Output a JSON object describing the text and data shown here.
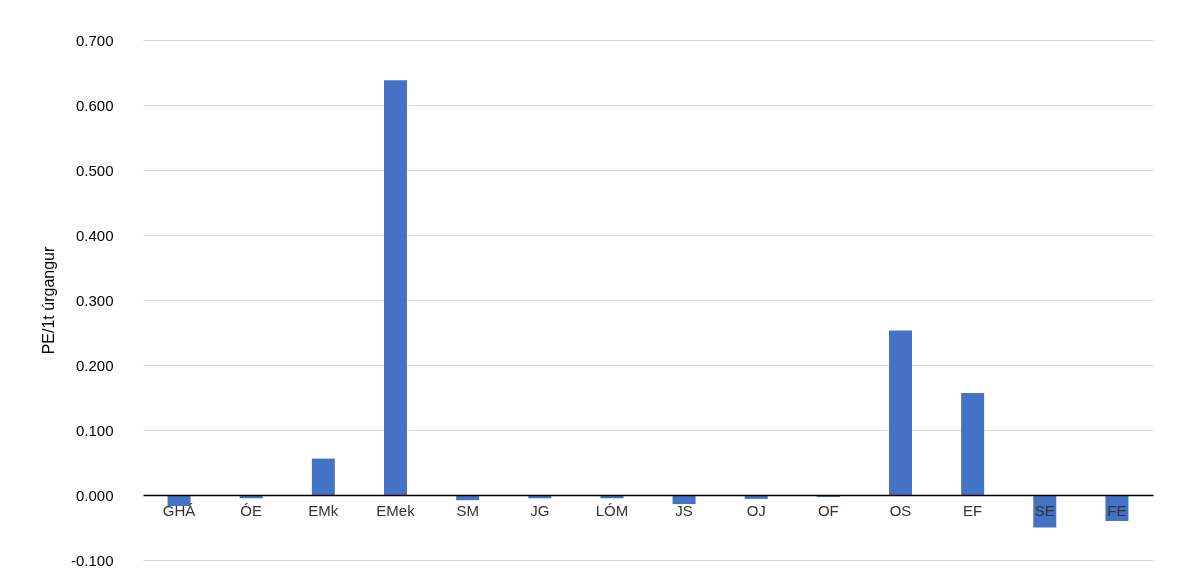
{
  "chart_data": {
    "type": "bar",
    "ylabel": "PE/1t úrgangur",
    "categories": [
      "GHÁ",
      "ÓE",
      "EMk",
      "EMek",
      "SM",
      "JG",
      "LÓM",
      "JS",
      "OJ",
      "OF",
      "OS",
      "EF",
      "SE",
      "FE"
    ],
    "values": [
      -0.017,
      -0.005,
      0.056,
      0.638,
      -0.008,
      -0.005,
      -0.005,
      -0.014,
      -0.006,
      -0.003,
      0.253,
      0.157,
      -0.05,
      -0.04
    ],
    "color": "#4472c4",
    "ylim": [
      -0.1,
      0.7
    ],
    "yticks": [
      {
        "value": -0.1,
        "label": "-0.100"
      },
      {
        "value": 0,
        "label": "0.000"
      },
      {
        "value": 0.1,
        "label": "0.100"
      },
      {
        "value": 0.2,
        "label": "0.200"
      },
      {
        "value": 0.3,
        "label": "0.300"
      },
      {
        "value": 0.4,
        "label": "0.400"
      },
      {
        "value": 0.5,
        "label": "0.500"
      },
      {
        "value": 0.6,
        "label": "0.600"
      },
      {
        "value": 0.7,
        "label": "0.700"
      }
    ],
    "grid": "y"
  }
}
